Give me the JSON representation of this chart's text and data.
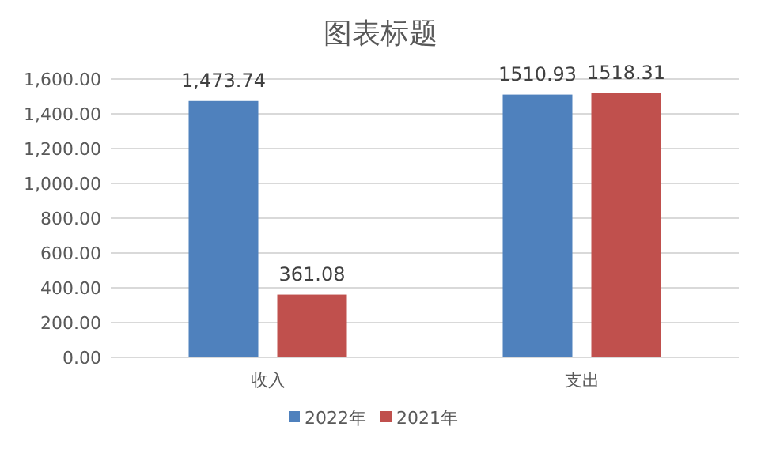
{
  "chart_data": {
    "type": "bar",
    "title": "图表标题",
    "categories": [
      "收入",
      "支出"
    ],
    "series": [
      {
        "name": "2022年",
        "color": "#4f81bd",
        "values": [
          1473.74,
          1510.93
        ],
        "value_labels": [
          "1,473.74",
          "1510.93"
        ]
      },
      {
        "name": "2021年",
        "color": "#c0504d",
        "values": [
          361.08,
          1518.31
        ],
        "value_labels": [
          "361.08",
          "1518.31"
        ]
      }
    ],
    "ylim": [
      0,
      1600
    ],
    "yticks": [
      {
        "value": 0,
        "label": "0.00"
      },
      {
        "value": 200,
        "label": "200.00"
      },
      {
        "value": 400,
        "label": "400.00"
      },
      {
        "value": 600,
        "label": "600.00"
      },
      {
        "value": 800,
        "label": "800.00"
      },
      {
        "value": 1000,
        "label": "1,000.00"
      },
      {
        "value": 1200,
        "label": "1,200.00"
      },
      {
        "value": 1400,
        "label": "1,400.00"
      },
      {
        "value": 1600,
        "label": "1,600.00"
      }
    ],
    "grid": "y",
    "legend": "bottom"
  }
}
